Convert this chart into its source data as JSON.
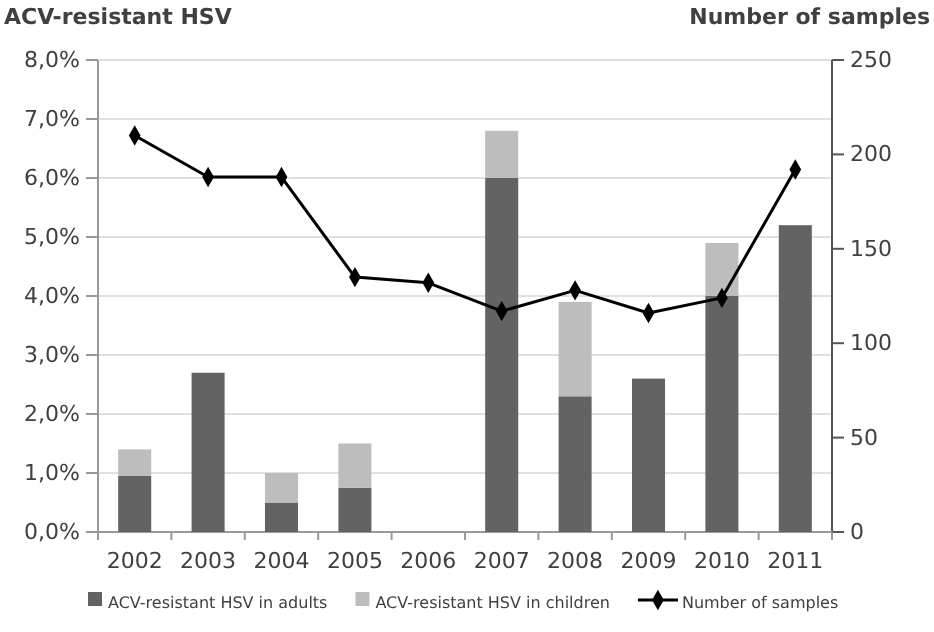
{
  "chart_data": {
    "type": "bar",
    "stacked": true,
    "ylabel": "ACV-resistant HSV",
    "y2label": "Number of samples",
    "categories": [
      "2002",
      "2003",
      "2004",
      "2005",
      "2006",
      "2007",
      "2008",
      "2009",
      "2010",
      "2011"
    ],
    "series": [
      {
        "name": "ACV-resistant HSV in adults",
        "color": "#636363",
        "values": [
          0.95,
          2.7,
          0.5,
          0.75,
          0,
          6.0,
          2.3,
          2.6,
          4.0,
          5.2
        ]
      },
      {
        "name": "ACV-resistant HSV in children",
        "color": "#bdbdbd",
        "values": [
          0.45,
          null,
          0.5,
          0.75,
          null,
          0.8,
          1.6,
          null,
          0.9,
          null
        ]
      },
      {
        "name": "Number of samples",
        "type": "line",
        "axis": "y2",
        "color": "#000000",
        "marker": "diamond",
        "values": [
          210,
          188,
          188,
          135,
          132,
          117,
          128,
          116,
          124,
          192
        ]
      }
    ],
    "ylim": [
      0,
      8
    ],
    "yticks": [
      {
        "value": 0,
        "label": "0,0%"
      },
      {
        "value": 1,
        "label": "1,0%"
      },
      {
        "value": 2,
        "label": "2,0%"
      },
      {
        "value": 3,
        "label": "3,0%"
      },
      {
        "value": 4,
        "label": "4,0%"
      },
      {
        "value": 5,
        "label": "5,0%"
      },
      {
        "value": 6,
        "label": "6,0%"
      },
      {
        "value": 7,
        "label": "7,0%"
      },
      {
        "value": 8,
        "label": "8,0%"
      }
    ],
    "y2lim": [
      0,
      250
    ],
    "y2ticks": [
      0,
      50,
      100,
      150,
      200,
      250
    ],
    "grid": "y",
    "legend": "bottom"
  }
}
